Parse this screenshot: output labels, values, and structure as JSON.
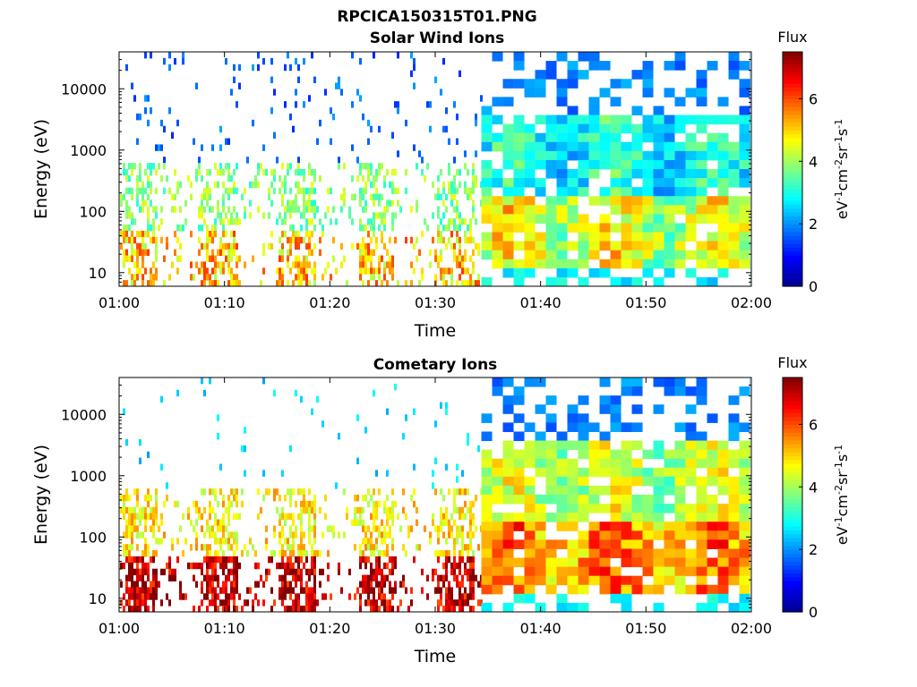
{
  "figure_title": "RPCICA150315T01.PNG",
  "colors": {
    "jet": [
      "#00008f",
      "#0000ff",
      "#007fff",
      "#00ffff",
      "#7fff7f",
      "#ffff00",
      "#ff7f00",
      "#ff0000",
      "#7f0000"
    ]
  },
  "chart_data": [
    {
      "type": "heatmap",
      "title": "Solar Wind Ions",
      "xlabel": "Time",
      "ylabel": "Energy (eV)",
      "x_ticks": [
        "01:00",
        "01:10",
        "01:20",
        "01:30",
        "01:40",
        "01:50",
        "02:00"
      ],
      "y_ticks": [
        "10",
        "100",
        "1000",
        "10000"
      ],
      "y_scale": "log",
      "ylim": [
        6,
        40000
      ],
      "colorbar": {
        "label": "Flux",
        "unit": "eV-1cm-2sr-1s-1",
        "ticks": [
          "0",
          "2",
          "4",
          "6"
        ],
        "range": [
          0,
          7.5
        ]
      },
      "regimes": [
        {
          "time_range": [
            "01:00",
            "01:34"
          ],
          "description_values": {
            "high_energy_flux": 1.2,
            "mid_energy_flux": 3.0,
            "low_energy_flux": 4.0
          }
        },
        {
          "time_range": [
            "01:34",
            "02:00"
          ],
          "description_values": {
            "high_energy_flux": 1.5,
            "mid_energy_flux": 3.2,
            "low_energy_flux": 4.5
          }
        }
      ]
    },
    {
      "type": "heatmap",
      "title": "Cometary Ions",
      "xlabel": "Time",
      "ylabel": "Energy (eV)",
      "x_ticks": [
        "01:00",
        "01:10",
        "01:20",
        "01:30",
        "01:40",
        "01:50",
        "02:00"
      ],
      "y_ticks": [
        "10",
        "100",
        "1000",
        "10000"
      ],
      "y_scale": "log",
      "ylim": [
        6,
        40000
      ],
      "colorbar": {
        "label": "Flux",
        "unit": "eV-1cm-2sr-1s-1",
        "ticks": [
          "0",
          "2",
          "4",
          "6"
        ],
        "range": [
          0,
          7.5
        ]
      },
      "regimes": [
        {
          "time_range": [
            "01:00",
            "01:34"
          ],
          "description_values": {
            "high_energy_flux": 2.0,
            "mid_energy_flux": 4.0,
            "low_energy_flux": 6.0
          }
        },
        {
          "time_range": [
            "01:34",
            "02:00"
          ],
          "description_values": {
            "high_energy_flux": 1.5,
            "mid_energy_flux": 4.5,
            "low_energy_flux": 5.5
          }
        }
      ]
    }
  ]
}
